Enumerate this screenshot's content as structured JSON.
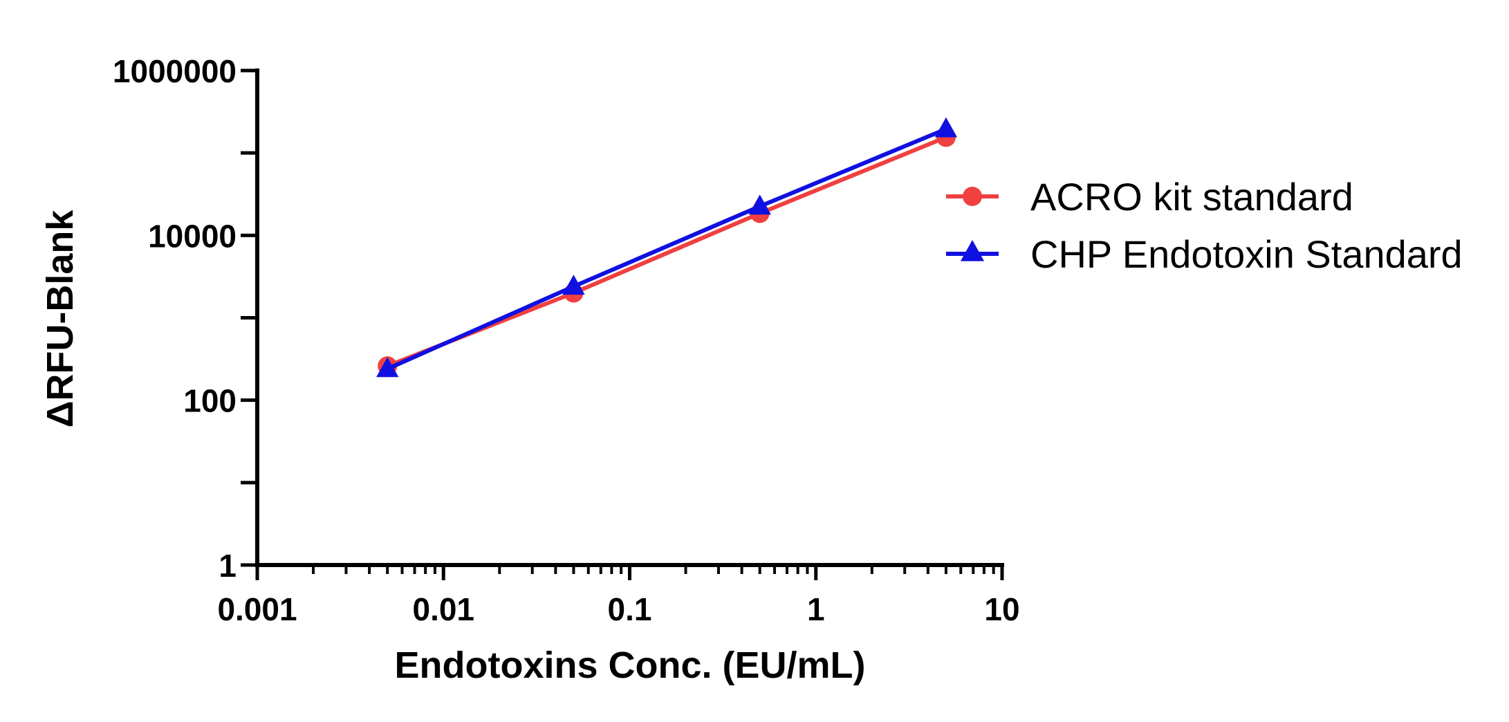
{
  "chart_data": {
    "type": "line",
    "title": "",
    "xlabel": "Endotoxins Conc. (EU/mL)",
    "ylabel": "ΔRFU-Blank",
    "x_scale": "log",
    "y_scale": "log",
    "xlim": [
      0.001,
      10
    ],
    "ylim": [
      1,
      1000000
    ],
    "x_tick_labels": [
      "0.001",
      "0.01",
      "0.1",
      "1",
      "10"
    ],
    "y_tick_labels": [
      "1",
      "100",
      "10000",
      "1000000"
    ],
    "grid": false,
    "legend_position": "right",
    "series": [
      {
        "name": "ACRO kit standard",
        "color": "#f04040",
        "marker": "circle",
        "x": [
          0.005,
          0.05,
          0.5,
          5
        ],
        "y": [
          260,
          2000,
          18500,
          155000
        ]
      },
      {
        "name": "CHP Endotoxin Standard",
        "color": "#1010e0",
        "marker": "triangle",
        "x": [
          0.005,
          0.05,
          0.5,
          5
        ],
        "y": [
          240,
          2400,
          22500,
          195000
        ]
      }
    ]
  }
}
